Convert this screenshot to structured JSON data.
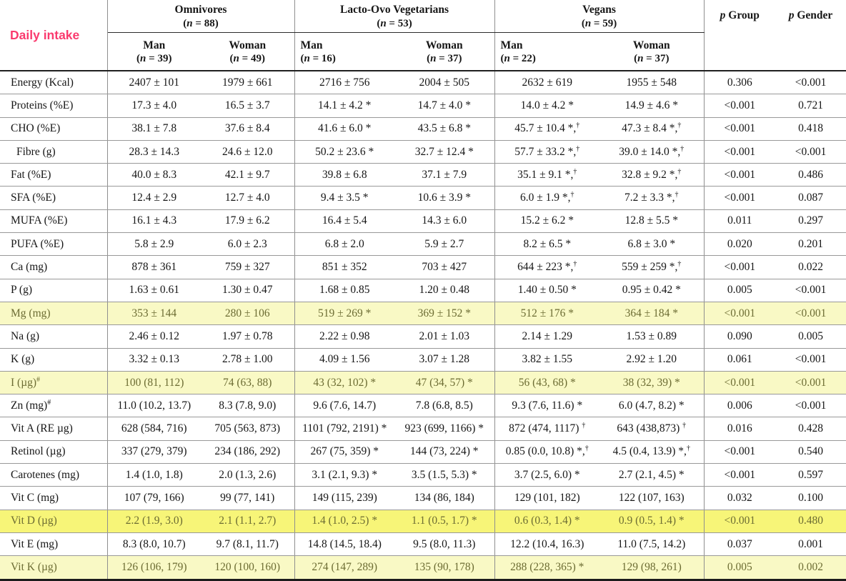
{
  "header": {
    "row_label": "Daily intake",
    "accent_color": "#fa3a6e",
    "highlight_pale": "#f9f9c5",
    "highlight_bright": "#f7f578",
    "groups": [
      {
        "name": "Omnivores",
        "n": "(n = 88)",
        "cols": [
          {
            "sex": "Man",
            "n": "(n = 39)"
          },
          {
            "sex": "Woman",
            "n": "(n = 49)"
          }
        ]
      },
      {
        "name": "Lacto-Ovo Vegetarians",
        "n": "(n = 53)",
        "cols": [
          {
            "sex": "Man",
            "n": "(n = 16)"
          },
          {
            "sex": "Woman",
            "n": "(n = 37)"
          }
        ]
      },
      {
        "name": "Vegans",
        "n": "(n = 59)",
        "cols": [
          {
            "sex": "Man",
            "n": "(n = 22)"
          },
          {
            "sex": "Woman",
            "n": "(n = 37)"
          }
        ]
      }
    ],
    "p_group": "p Group",
    "p_gender": "p Gender"
  },
  "rows": [
    {
      "label": "Energy (Kcal)",
      "sup": "",
      "highlight": "none",
      "indent": false,
      "cells": [
        "2407 ± 101",
        "1979 ± 661",
        "2716 ± 756",
        "2004 ± 505",
        "2632 ± 619",
        "1955 ± 548"
      ],
      "p_group": "0.306",
      "p_gender": "<0.001"
    },
    {
      "label": "Proteins (%E)",
      "sup": "",
      "highlight": "none",
      "indent": false,
      "cells": [
        "17.3 ± 4.0",
        "16.5 ± 3.7",
        "14.1 ± 4.2 *",
        "14.7 ± 4.0 *",
        "14.0 ± 4.2 *",
        "14.9 ± 4.6 *"
      ],
      "p_group": "<0.001",
      "p_gender": "0.721"
    },
    {
      "label": "CHO (%E)",
      "sup": "",
      "highlight": "none",
      "indent": false,
      "cells": [
        "38.1 ± 7.8",
        "37.6 ± 8.4",
        "41.6 ± 6.0 *",
        "43.5 ± 6.8 *",
        "45.7 ± 10.4 *,†",
        "47.3 ± 8.4 *,†"
      ],
      "p_group": "<0.001",
      "p_gender": "0.418"
    },
    {
      "label": "Fibre (g)",
      "sup": "",
      "highlight": "none",
      "indent": true,
      "cells": [
        "28.3 ± 14.3",
        "24.6 ± 12.0",
        "50.2 ± 23.6 *",
        "32.7 ± 12.4 *",
        "57.7 ± 33.2 *,†",
        "39.0 ± 14.0 *,†"
      ],
      "p_group": "<0.001",
      "p_gender": "<0.001"
    },
    {
      "label": "Fat (%E)",
      "sup": "",
      "highlight": "none",
      "indent": false,
      "cells": [
        "40.0 ± 8.3",
        "42.1 ± 9.7",
        "39.8 ± 6.8",
        "37.1 ± 7.9",
        "35.1 ± 9.1 *,†",
        "32.8 ± 9.2 *,†"
      ],
      "p_group": "<0.001",
      "p_gender": "0.486"
    },
    {
      "label": "SFA (%E)",
      "sup": "",
      "highlight": "none",
      "indent": false,
      "cells": [
        "12.4 ± 2.9",
        "12.7 ± 4.0",
        "9.4 ± 3.5 *",
        "10.6 ± 3.9 *",
        "6.0 ± 1.9 *,†",
        "7.2 ± 3.3 *,†"
      ],
      "p_group": "<0.001",
      "p_gender": "0.087"
    },
    {
      "label": "MUFA (%E)",
      "sup": "",
      "highlight": "none",
      "indent": false,
      "cells": [
        "16.1 ± 4.3",
        "17.9 ± 6.2",
        "16.4 ± 5.4",
        "14.3 ± 6.0",
        "15.2 ± 6.2 *",
        "12.8 ± 5.5 *"
      ],
      "p_group": "0.011",
      "p_gender": "0.297"
    },
    {
      "label": "PUFA (%E)",
      "sup": "",
      "highlight": "none",
      "indent": false,
      "cells": [
        "5.8 ± 2.9",
        "6.0 ± 2.3",
        "6.8 ± 2.0",
        "5.9 ± 2.7",
        "8.2 ± 6.5 *",
        "6.8 ± 3.0 *"
      ],
      "p_group": "0.020",
      "p_gender": "0.201"
    },
    {
      "label": "Ca (mg)",
      "sup": "",
      "highlight": "none",
      "indent": false,
      "cells": [
        "878 ± 361",
        "759 ± 327",
        "851 ± 352",
        "703 ± 427",
        "644 ± 223 *,†",
        "559 ± 259 *,†"
      ],
      "p_group": "<0.001",
      "p_gender": "0.022"
    },
    {
      "label": "P (g)",
      "sup": "",
      "highlight": "none",
      "indent": false,
      "cells": [
        "1.63 ± 0.61",
        "1.30 ± 0.47",
        "1.68 ± 0.85",
        "1.20 ± 0.48",
        "1.40 ± 0.50 *",
        "0.95 ± 0.42 *"
      ],
      "p_group": "0.005",
      "p_gender": "<0.001"
    },
    {
      "label": "Mg (mg)",
      "sup": "",
      "highlight": "pale",
      "indent": false,
      "cells": [
        "353 ± 144",
        "280 ± 106",
        "519 ± 269 *",
        "369 ± 152 *",
        "512 ± 176 *",
        "364 ± 184 *"
      ],
      "p_group": "<0.001",
      "p_gender": "<0.001"
    },
    {
      "label": "Na (g)",
      "sup": "",
      "highlight": "none",
      "indent": false,
      "cells": [
        "2.46 ± 0.12",
        "1.97 ± 0.78",
        "2.22 ± 0.98",
        "2.01 ± 1.03",
        "2.14 ± 1.29",
        "1.53 ± 0.89"
      ],
      "p_group": "0.090",
      "p_gender": "0.005"
    },
    {
      "label": "K (g)",
      "sup": "",
      "highlight": "none",
      "indent": false,
      "cells": [
        "3.32 ± 0.13",
        "2.78 ± 1.00",
        "4.09 ± 1.56",
        "3.07 ± 1.28",
        "3.82 ± 1.55",
        "2.92 ± 1.20"
      ],
      "p_group": "0.061",
      "p_gender": "<0.001"
    },
    {
      "label": "I (µg)",
      "sup": "#",
      "highlight": "pale",
      "indent": false,
      "cells": [
        "100 (81, 112)",
        "74 (63, 88)",
        "43 (32, 102) *",
        "47 (34, 57) *",
        "56 (43, 68) *",
        "38 (32, 39) *"
      ],
      "p_group": "<0.001",
      "p_gender": "<0.001"
    },
    {
      "label": "Zn (mg)",
      "sup": "#",
      "highlight": "none",
      "indent": false,
      "cells": [
        "11.0 (10.2, 13.7)",
        "8.3 (7.8, 9.0)",
        "9.6 (7.6, 14.7)",
        "7.8 (6.8, 8.5)",
        "9.3 (7.6, 11.6) *",
        "6.0 (4.7, 8.2) *"
      ],
      "p_group": "0.006",
      "p_gender": "<0.001"
    },
    {
      "label": "Vit A (RE µg)",
      "sup": "",
      "highlight": "none",
      "indent": false,
      "cells": [
        "628 (584, 716)",
        "705 (563, 873)",
        "1101 (792, 2191) *",
        "923 (699, 1166) *",
        "872 (474, 1117) †",
        "643 (438,873) †"
      ],
      "p_group": "0.016",
      "p_gender": "0.428"
    },
    {
      "label": "Retinol (µg)",
      "sup": "",
      "highlight": "none",
      "indent": false,
      "cells": [
        "337 (279, 379)",
        "234 (186, 292)",
        "267 (75, 359) *",
        "144 (73, 224) *",
        "0.85 (0.0, 10.8) *,†",
        "4.5 (0.4, 13.9) *,†"
      ],
      "p_group": "<0.001",
      "p_gender": "0.540"
    },
    {
      "label": "Carotenes (mg)",
      "sup": "",
      "highlight": "none",
      "indent": false,
      "cells": [
        "1.4 (1.0, 1.8)",
        "2.0 (1.3, 2.6)",
        "3.1 (2.1, 9.3) *",
        "3.5 (1.5, 5.3) *",
        "3.7 (2.5, 6.0) *",
        "2.7 (2.1, 4.5) *"
      ],
      "p_group": "<0.001",
      "p_gender": "0.597"
    },
    {
      "label": "Vit C (mg)",
      "sup": "",
      "highlight": "none",
      "indent": false,
      "cells": [
        "107 (79, 166)",
        "99 (77, 141)",
        "149 (115, 239)",
        "134 (86, 184)",
        "129 (101, 182)",
        "122 (107, 163)"
      ],
      "p_group": "0.032",
      "p_gender": "0.100"
    },
    {
      "label": "Vit D (µg)",
      "sup": "",
      "highlight": "bright",
      "indent": false,
      "cells": [
        "2.2 (1.9, 3.0)",
        "2.1 (1.1, 2.7)",
        "1.4 (1.0, 2.5) *",
        "1.1 (0.5, 1.7) *",
        "0.6 (0.3, 1.4) *",
        "0.9 (0.5, 1.4) *"
      ],
      "p_group": "<0.001",
      "p_gender": "0.480"
    },
    {
      "label": "Vit E (mg)",
      "sup": "",
      "highlight": "none",
      "indent": false,
      "cells": [
        "8.3 (8.0, 10.7)",
        "9.7 (8.1, 11.7)",
        "14.8 (14.5, 18.4)",
        "9.5 (8.0, 11.3)",
        "12.2 (10.4, 16.3)",
        "11.0 (7.5, 14.2)"
      ],
      "p_group": "0.037",
      "p_gender": "0.001"
    },
    {
      "label": "Vit K (µg)",
      "sup": "",
      "highlight": "pale",
      "indent": false,
      "cells": [
        "126 (106, 179)",
        "120 (100, 160)",
        "274 (147, 289)",
        "135 (90, 178)",
        "288 (228, 365) *",
        "129 (98, 261)"
      ],
      "p_group": "0.005",
      "p_gender": "0.002"
    }
  ]
}
